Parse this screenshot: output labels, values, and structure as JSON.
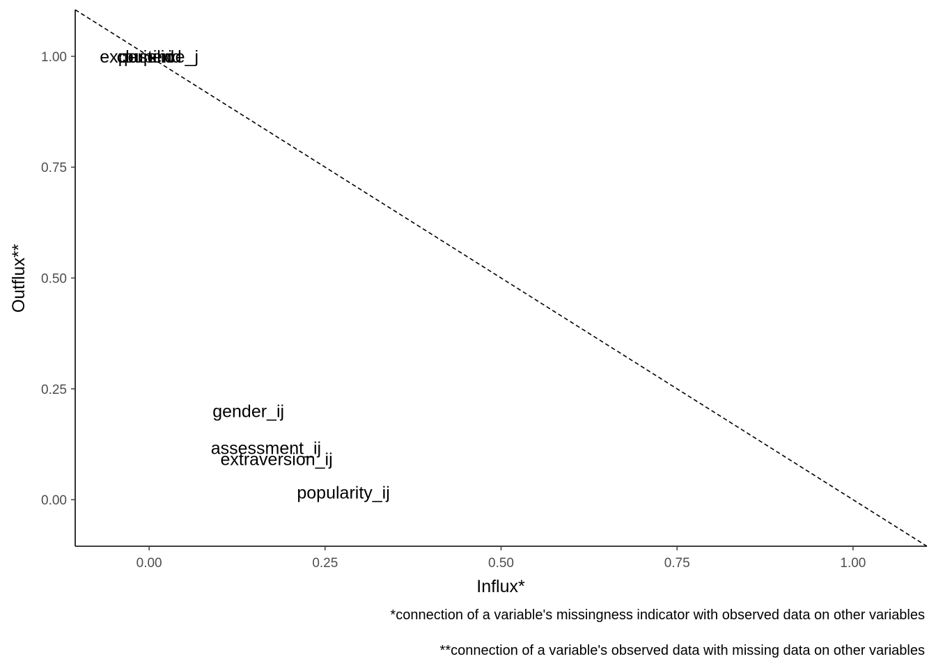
{
  "chart_data": {
    "type": "scatter",
    "title": "",
    "xlabel": "Influx*",
    "ylabel": "Outflux**",
    "xlim": [
      -0.105,
      1.105
    ],
    "ylim": [
      -0.105,
      1.105
    ],
    "xticks": [
      0.0,
      0.25,
      0.5,
      0.75,
      1.0
    ],
    "xtick_labels": [
      "0.00",
      "0.25",
      "0.50",
      "0.75",
      "1.00"
    ],
    "yticks": [
      0.0,
      0.25,
      0.5,
      0.75,
      1.0
    ],
    "ytick_labels": [
      "0.00",
      "0.25",
      "0.50",
      "0.75",
      "1.00"
    ],
    "grid": false,
    "points": [
      {
        "label": "experience_j",
        "x": 0.0,
        "y": 1.0
      },
      {
        "label": "clusterid",
        "x": 0.0,
        "y": 1.0
      },
      {
        "label": "pupilid",
        "x": 0.0,
        "y": 1.0
      },
      {
        "label": "gender_ij",
        "x": 0.141,
        "y": 0.2
      },
      {
        "label": "assessment_ij",
        "x": 0.166,
        "y": 0.117
      },
      {
        "label": "extraversion_ij",
        "x": 0.181,
        "y": 0.092
      },
      {
        "label": "popularity_ij",
        "x": 0.276,
        "y": 0.017
      }
    ],
    "reference_line": {
      "style": "dashed",
      "from": [
        -0.105,
        1.105
      ],
      "to": [
        1.105,
        -0.105
      ]
    },
    "captions": [
      "*connection of a variable's missingness indicator with observed data on other variables",
      "**connection of a variable's observed data with missing data on other variables"
    ]
  }
}
